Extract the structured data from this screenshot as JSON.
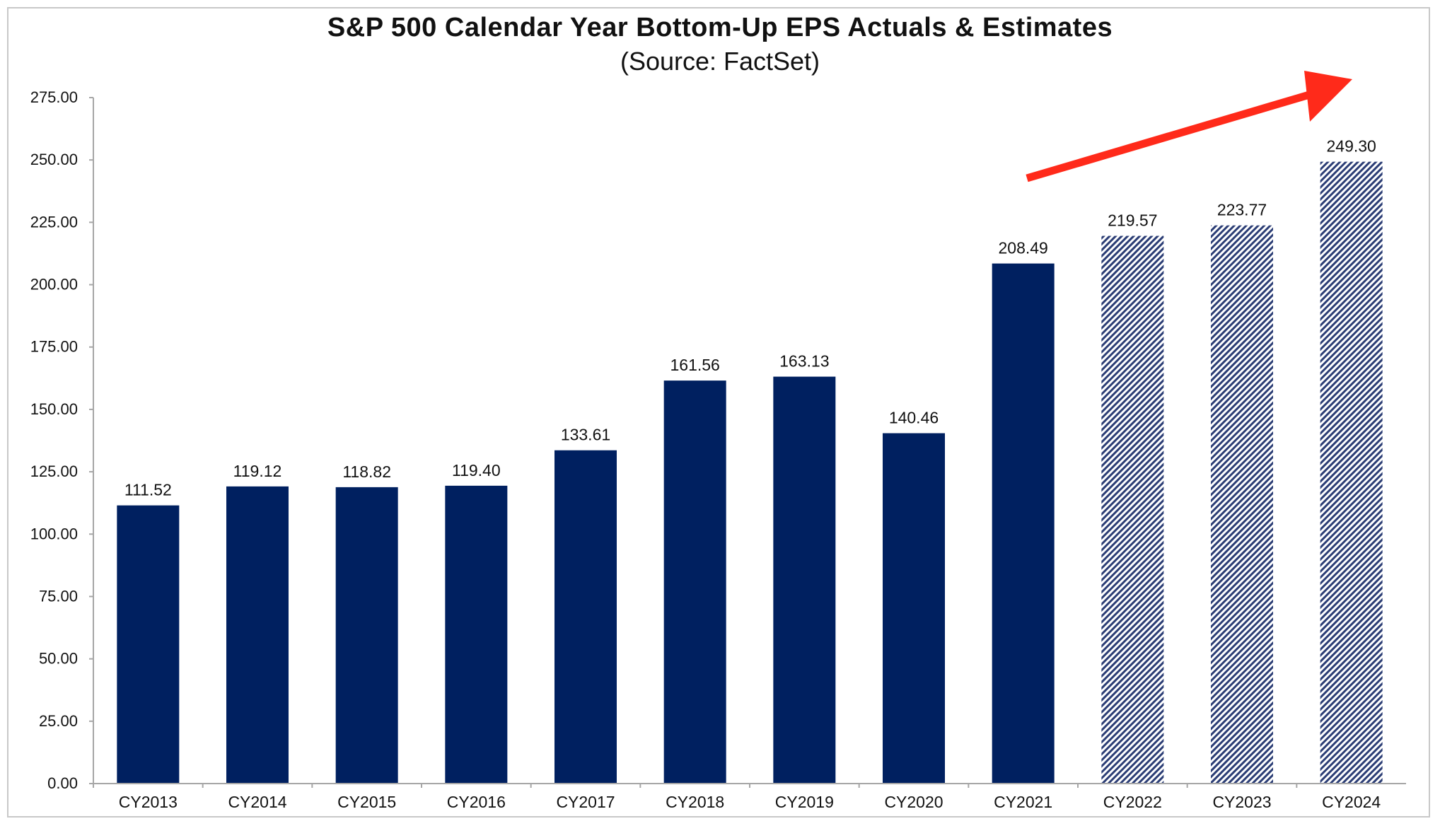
{
  "chart_data": {
    "type": "bar",
    "title": "S&P 500 Calendar Year Bottom-Up EPS Actuals & Estimates",
    "subtitle": "(Source: FactSet)",
    "xlabel": "",
    "ylabel": "",
    "categories": [
      "CY2013",
      "CY2014",
      "CY2015",
      "CY2016",
      "CY2017",
      "CY2018",
      "CY2019",
      "CY2020",
      "CY2021",
      "CY2022",
      "CY2023",
      "CY2024"
    ],
    "values": [
      111.52,
      119.12,
      118.82,
      119.4,
      133.61,
      161.56,
      163.13,
      140.46,
      208.49,
      219.57,
      223.77,
      249.3
    ],
    "value_labels": [
      "111.52",
      "119.12",
      "118.82",
      "119.40",
      "133.61",
      "161.56",
      "163.13",
      "140.46",
      "208.49",
      "219.57",
      "223.77",
      "249.30"
    ],
    "bar_style": [
      "solid",
      "solid",
      "solid",
      "solid",
      "solid",
      "solid",
      "solid",
      "solid",
      "solid",
      "hatched",
      "hatched",
      "hatched"
    ],
    "ylim": [
      0,
      275
    ],
    "yticks": [
      "0.00",
      "25.00",
      "50.00",
      "75.00",
      "100.00",
      "125.00",
      "150.00",
      "175.00",
      "200.00",
      "225.00",
      "250.00",
      "275.00"
    ],
    "grid": false,
    "legend": "none",
    "annotation": "red-arrow-up-right",
    "colors": {
      "bar": "#002060",
      "hatch": "#2b3d75",
      "arrow": "#ff2a1a",
      "axis": "#a6a6a6",
      "text": "#111111"
    }
  }
}
